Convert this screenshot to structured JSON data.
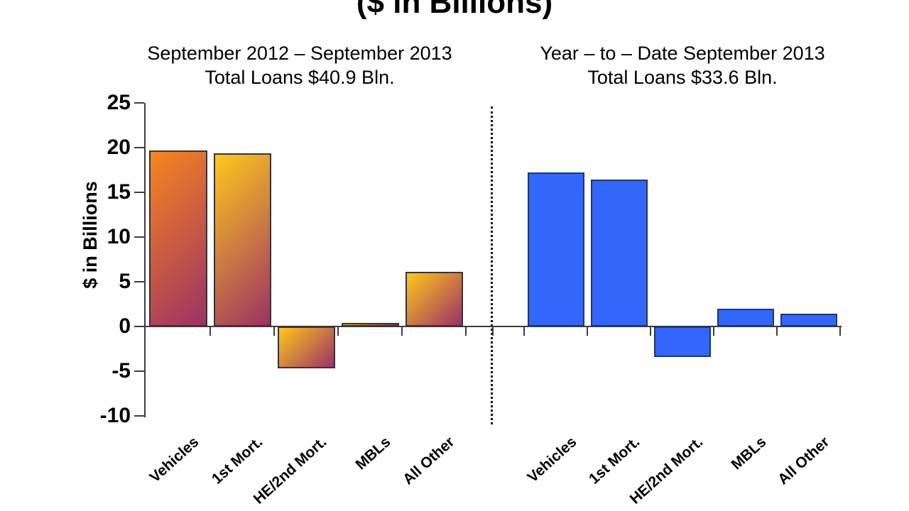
{
  "title": "($ in Billions)",
  "y_axis": {
    "label": "$ in Billions",
    "tick_labels": [
      "25",
      "20",
      "15",
      "10",
      "5",
      "0",
      "-5",
      "-10"
    ],
    "min": -10,
    "max": 25
  },
  "colors": {
    "bar_orange_top": "#F6861F",
    "bar_gold_top": "#FEC81D",
    "bar_gradient_bottom": "#9C3166",
    "bar_gradient_border": "#3A3434",
    "bar_blue": "#3366FB",
    "bar_blue_border": "#1F3864",
    "axis": "#3d3d3d",
    "divider": "#111111",
    "text": "#000000",
    "background": "#ffffff"
  },
  "chart_data": [
    {
      "type": "bar",
      "title": "September 2012 – September 2013",
      "subtitle": "Total Loans $40.9 Bln.",
      "categories": [
        "Vehicles",
        "1st Mort.",
        "HE/2nd Mort.",
        "MBLs",
        "All Other"
      ],
      "values": [
        19.7,
        19.4,
        -4.7,
        0.4,
        6.1
      ],
      "bar_style": "gradient",
      "xlabel": "",
      "ylabel": "$ in Billions",
      "ylim": [
        -10,
        25
      ],
      "grid": false,
      "legend": false
    },
    {
      "type": "bar",
      "title": "Year – to – Date September 2013",
      "subtitle": "Total Loans $33.6 Bln.",
      "categories": [
        "Vehicles",
        "1st Mort.",
        "HE/2nd Mort.",
        "MBLs",
        "All Other"
      ],
      "values": [
        17.2,
        16.4,
        -3.4,
        2.0,
        1.4
      ],
      "bar_style": "solid",
      "xlabel": "",
      "ylabel": "$ in Billions",
      "ylim": [
        -10,
        25
      ],
      "grid": false,
      "legend": false
    }
  ]
}
